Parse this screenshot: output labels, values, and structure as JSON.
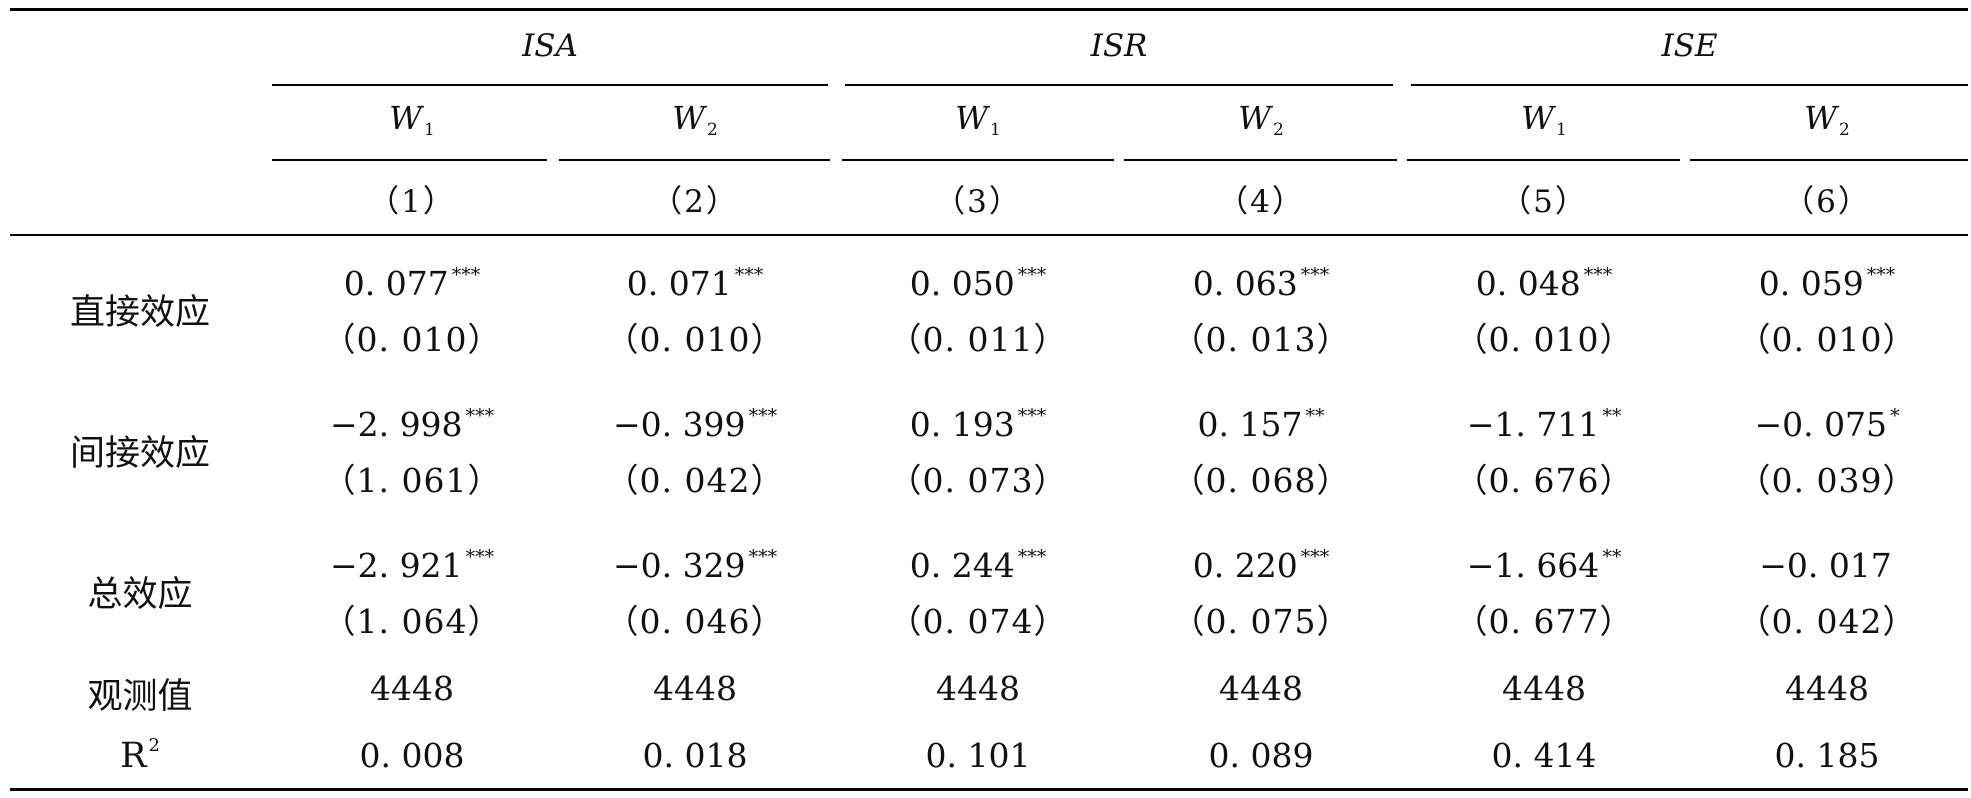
{
  "groups": [
    "ISA",
    "ISR",
    "ISE"
  ],
  "weights": [
    {
      "base": "W",
      "sub": "1"
    },
    {
      "base": "W",
      "sub": "2"
    },
    {
      "base": "W",
      "sub": "1"
    },
    {
      "base": "W",
      "sub": "2"
    },
    {
      "base": "W",
      "sub": "1"
    },
    {
      "base": "W",
      "sub": "2"
    }
  ],
  "col_numbers": [
    "（1）",
    "（2）",
    "（3）",
    "（4）",
    "（5）",
    "（6）"
  ],
  "rows": [
    {
      "label": "直接效应",
      "values": [
        {
          "v": "0. 077",
          "s": "***"
        },
        {
          "v": "0. 071",
          "s": "***"
        },
        {
          "v": "0. 050",
          "s": "***"
        },
        {
          "v": "0. 063",
          "s": "***"
        },
        {
          "v": "0. 048",
          "s": "***"
        },
        {
          "v": "0. 059",
          "s": "***"
        }
      ],
      "se": [
        "（0. 010）",
        "（0. 010）",
        "（0. 011）",
        "（0. 013）",
        "（0. 010）",
        "（0. 010）"
      ]
    },
    {
      "label": "间接效应",
      "values": [
        {
          "v": "−2. 998",
          "s": "***"
        },
        {
          "v": "−0. 399",
          "s": "***"
        },
        {
          "v": "0. 193",
          "s": "***"
        },
        {
          "v": "0. 157",
          "s": "**"
        },
        {
          "v": "−1. 711",
          "s": "**"
        },
        {
          "v": "−0. 075",
          "s": "*"
        }
      ],
      "se": [
        "（1. 061）",
        "（0. 042）",
        "（0. 073）",
        "（0. 068）",
        "（0. 676）",
        "（0. 039）"
      ]
    },
    {
      "label": "总效应",
      "values": [
        {
          "v": "−2. 921",
          "s": "***"
        },
        {
          "v": "−0. 329",
          "s": "***"
        },
        {
          "v": "0. 244",
          "s": "***"
        },
        {
          "v": "0. 220",
          "s": "***"
        },
        {
          "v": "−1. 664",
          "s": "**"
        },
        {
          "v": "−0. 017",
          "s": ""
        }
      ],
      "se": [
        "（1. 064）",
        "（0. 046）",
        "（0. 074）",
        "（0. 075）",
        "（0. 677）",
        "（0. 042）"
      ]
    }
  ],
  "observations": {
    "label": "观测值",
    "values": [
      "4448",
      "4448",
      "4448",
      "4448",
      "4448",
      "4448"
    ]
  },
  "r2": {
    "label_base": "R",
    "label_sup": "2",
    "values": [
      "0. 008",
      "0. 018",
      "0. 101",
      "0. 089",
      "0. 414",
      "0. 185"
    ]
  }
}
